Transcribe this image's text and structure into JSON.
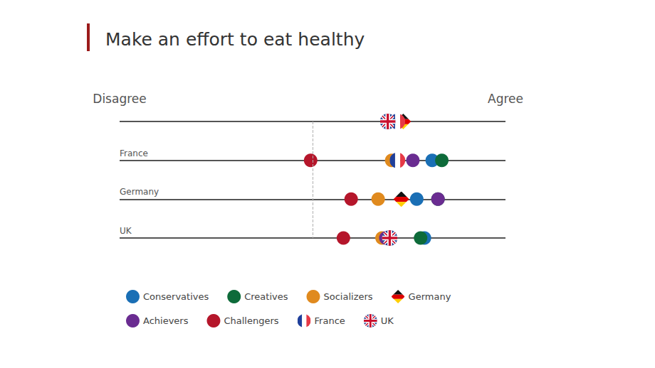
{
  "chart_data": {
    "type": "scatter",
    "title": "Make an effort to eat healthy",
    "categories": [
      null,
      "France",
      "Germany",
      "UK"
    ],
    "xlim": [
      -1,
      1
    ],
    "xticks": [
      {
        "value": -1,
        "label": "Disagree"
      },
      {
        "value": 1,
        "label": "Agree"
      }
    ],
    "reference_line": {
      "x": 0,
      "line_style": "dashed"
    },
    "grid": true,
    "legend": "bottom",
    "series": [
      {
        "name": "Conservatives",
        "color": "#1a6fb5",
        "marker": "circle",
        "values": [
          null,
          0.62,
          0.54,
          0.58
        ]
      },
      {
        "name": "Creatives",
        "color": "#0e6b3a",
        "marker": "circle",
        "values": [
          null,
          0.67,
          0.65,
          0.56
        ]
      },
      {
        "name": "Socializers",
        "color": "#e08a1e",
        "marker": "circle",
        "values": [
          null,
          0.41,
          0.34,
          0.36
        ]
      },
      {
        "name": "Germany",
        "color": "#dd0000",
        "marker": "flag_de",
        "values": [
          0.47,
          null,
          0.46,
          null
        ]
      },
      {
        "name": "Achievers",
        "color": "#6a2c91",
        "marker": "circle",
        "values": [
          null,
          0.52,
          0.65,
          0.38
        ]
      },
      {
        "name": "Challengers",
        "color": "#b5162b",
        "marker": "circle",
        "values": [
          null,
          -0.01,
          0.2,
          0.16
        ]
      },
      {
        "name": "France",
        "color": "#1f3f9b",
        "marker": "flag_fr",
        "values": [
          0.44,
          0.44,
          null,
          null
        ]
      },
      {
        "name": "UK",
        "color": "#c8102e",
        "marker": "flag_uk",
        "values": [
          0.39,
          null,
          null,
          0.4
        ]
      }
    ]
  }
}
